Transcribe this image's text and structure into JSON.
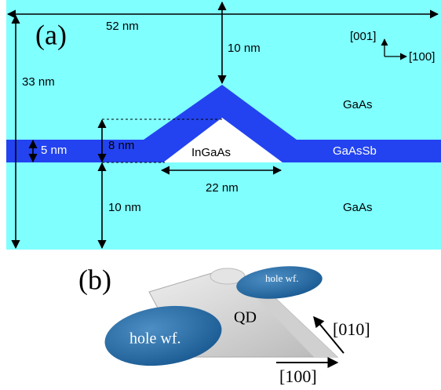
{
  "panel_a": {
    "label": "(a)",
    "dimensions": {
      "width": "52 nm",
      "cap_top": "10 nm",
      "height_total": "33 nm",
      "wetting": "5 nm",
      "dot_height": "8 nm",
      "bottom": "10 nm",
      "base": "22 nm"
    },
    "axes": {
      "vertical": "[001]",
      "horizontal": "[100]"
    },
    "materials": {
      "cap": "GaAs",
      "dot": "InGaAs",
      "layer": "GaAsSb",
      "substrate": "GaAs"
    }
  },
  "panel_b": {
    "label": "(b)",
    "hole_left": "hole wf.",
    "hole_right": "hole wf.",
    "dot": "QD",
    "axis_diag": "[010]",
    "axis_horiz": "[100]"
  }
}
